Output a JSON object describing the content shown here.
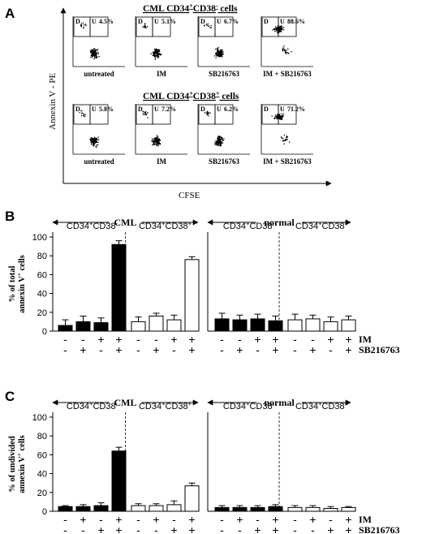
{
  "panelA": {
    "letter": "A",
    "ylabel": "Annexin V - PE",
    "xlabel": "CFSE",
    "rows": [
      {
        "title_prefix": "CML CD34",
        "title_sup1": "+",
        "title_mid": "CD38",
        "title_sup2": "-",
        "title_suffix": " cells",
        "plots": [
          {
            "label": "untreated",
            "pct": "4.5%"
          },
          {
            "label": "IM",
            "pct": "5.1%"
          },
          {
            "label": "SB216763",
            "pct": "6.7%"
          },
          {
            "label": "IM + SB216763",
            "pct": "88.6%"
          }
        ]
      },
      {
        "title_prefix": "CML CD34",
        "title_sup1": "+",
        "title_mid": "CD38",
        "title_sup2": "+",
        "title_suffix": " cells",
        "plots": [
          {
            "label": "untreated",
            "pct": "5.8%"
          },
          {
            "label": "IM",
            "pct": "7.2%"
          },
          {
            "label": "SB216763",
            "pct": "6.2%"
          },
          {
            "label": "IM + SB216763",
            "pct": "71.2%"
          }
        ]
      }
    ],
    "gate_d": "D",
    "gate_u": "U"
  },
  "chart_data": [
    {
      "type": "bar",
      "panel": "B",
      "ylabel_line1": "% of total",
      "ylabel_line2": "annexin V",
      "ylabel_sup": "+",
      "ylabel_tail": " cells",
      "ylim": [
        0,
        100
      ],
      "yticks": [
        0,
        20,
        40,
        60,
        80,
        100
      ],
      "groups": [
        {
          "section": "CML",
          "label": "CD34+CD38-",
          "fill": "#000000",
          "values": [
            6,
            10,
            9,
            92
          ],
          "errors": [
            6,
            6,
            5,
            4
          ]
        },
        {
          "section": "CML",
          "label": "CD34+CD38+",
          "fill": "#ffffff",
          "values": [
            10,
            16,
            12,
            76
          ],
          "errors": [
            5,
            3,
            5,
            3
          ]
        },
        {
          "section": "normal",
          "label": "CD34+CD38-",
          "fill": "#000000",
          "values": [
            13,
            12,
            13,
            11
          ],
          "errors": [
            6,
            5,
            5,
            5
          ]
        },
        {
          "section": "normal",
          "label": "CD34+CD38+",
          "fill": "#ffffff",
          "values": [
            12,
            13,
            10,
            12
          ],
          "errors": [
            6,
            4,
            5,
            4
          ]
        }
      ],
      "treatment_rows": [
        {
          "name": "IM",
          "signs": [
            "-",
            "-",
            "+",
            "+"
          ]
        },
        {
          "name": "SB216763",
          "signs": [
            "-",
            "+",
            "-",
            "+"
          ]
        }
      ]
    },
    {
      "type": "bar",
      "panel": "C",
      "ylabel_line1": "% of undivided",
      "ylabel_line2": "annexin V",
      "ylabel_sup": "+",
      "ylabel_tail": " cells",
      "ylim": [
        0,
        100
      ],
      "yticks": [
        0,
        20,
        40,
        60,
        80,
        100
      ],
      "groups": [
        {
          "section": "CML",
          "label": "CD34+CD38-",
          "fill": "#000000",
          "values": [
            5,
            5,
            6,
            64
          ],
          "errors": [
            1,
            2,
            3,
            4
          ]
        },
        {
          "section": "CML",
          "label": "CD34+CD38+",
          "fill": "#ffffff",
          "values": [
            6,
            6,
            7,
            27
          ],
          "errors": [
            2,
            2,
            4,
            3
          ]
        },
        {
          "section": "normal",
          "label": "CD34+CD38-",
          "fill": "#000000",
          "values": [
            4,
            4,
            4,
            5
          ],
          "errors": [
            2,
            2,
            2,
            2
          ]
        },
        {
          "section": "normal",
          "label": "CD34+CD38+",
          "fill": "#ffffff",
          "values": [
            4,
            4,
            3,
            4
          ],
          "errors": [
            2,
            2,
            2,
            1
          ]
        }
      ],
      "treatment_rows": [
        {
          "name": "IM",
          "signs": [
            "-",
            "+",
            "-",
            "+"
          ]
        },
        {
          "name": "SB216763",
          "signs": [
            "-",
            "-",
            "+",
            "+"
          ]
        }
      ]
    }
  ],
  "sections": {
    "cml": "CML",
    "normal": "normal"
  }
}
